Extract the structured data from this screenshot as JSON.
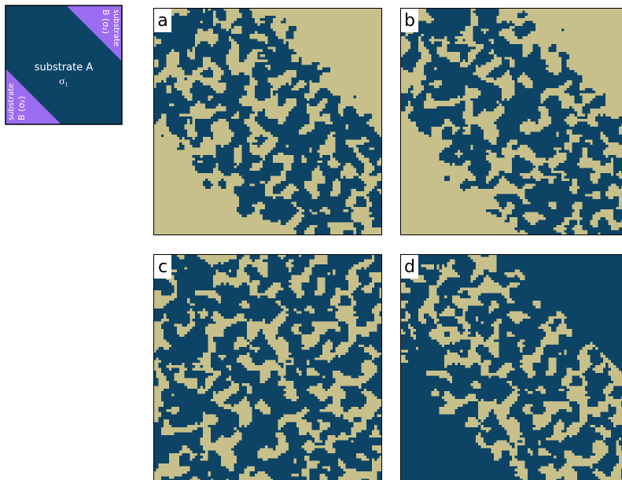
{
  "inset": {
    "center_label": "substrate A",
    "center_sigma": "σ₁",
    "corners": [
      {
        "line1": "substrate",
        "line2": "B (σ₂)"
      },
      {
        "line1": "substrate",
        "line2": "B (σ₂)"
      }
    ]
  },
  "panels": [
    {
      "label": "a"
    },
    {
      "label": "b"
    },
    {
      "label": "c"
    },
    {
      "label": "d"
    }
  ]
}
